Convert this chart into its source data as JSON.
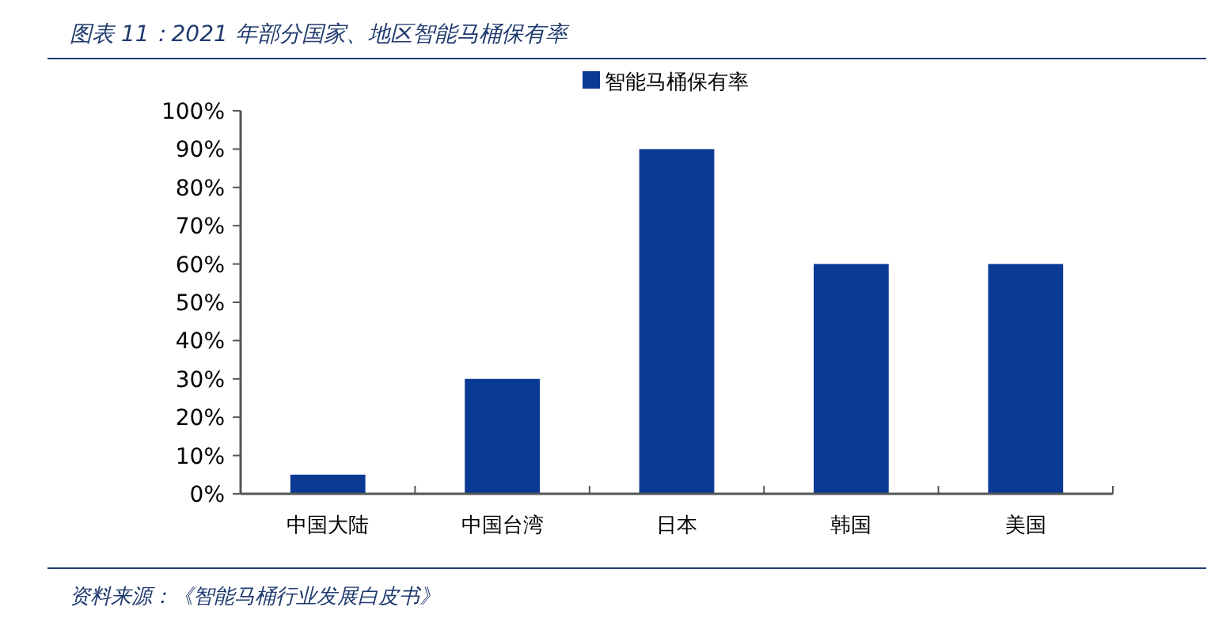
{
  "chart_data": {
    "type": "bar",
    "title": "图表 11：2021 年部分国家、地区智能马桶保有率",
    "categories": [
      "中国大陆",
      "中国台湾",
      "日本",
      "韩国",
      "美国"
    ],
    "series": [
      {
        "name": "智能马桶保有率",
        "color": "#0b3a94",
        "values": [
          5,
          30,
          90,
          60,
          60
        ]
      }
    ],
    "ylim": [
      0,
      100
    ],
    "yticks": [
      {
        "value": 0,
        "label": "0%"
      },
      {
        "value": 10,
        "label": "10%"
      },
      {
        "value": 20,
        "label": "20%"
      },
      {
        "value": 30,
        "label": "30%"
      },
      {
        "value": 40,
        "label": "40%"
      },
      {
        "value": 50,
        "label": "50%"
      },
      {
        "value": 60,
        "label": "60%"
      },
      {
        "value": 70,
        "label": "70%"
      },
      {
        "value": 80,
        "label": "80%"
      },
      {
        "value": 90,
        "label": "90%"
      },
      {
        "value": 100,
        "label": "100%"
      }
    ],
    "grid": false,
    "legend": "top",
    "annotations": [
      "资料来源：《智能马桶行业发展白皮书》"
    ]
  }
}
